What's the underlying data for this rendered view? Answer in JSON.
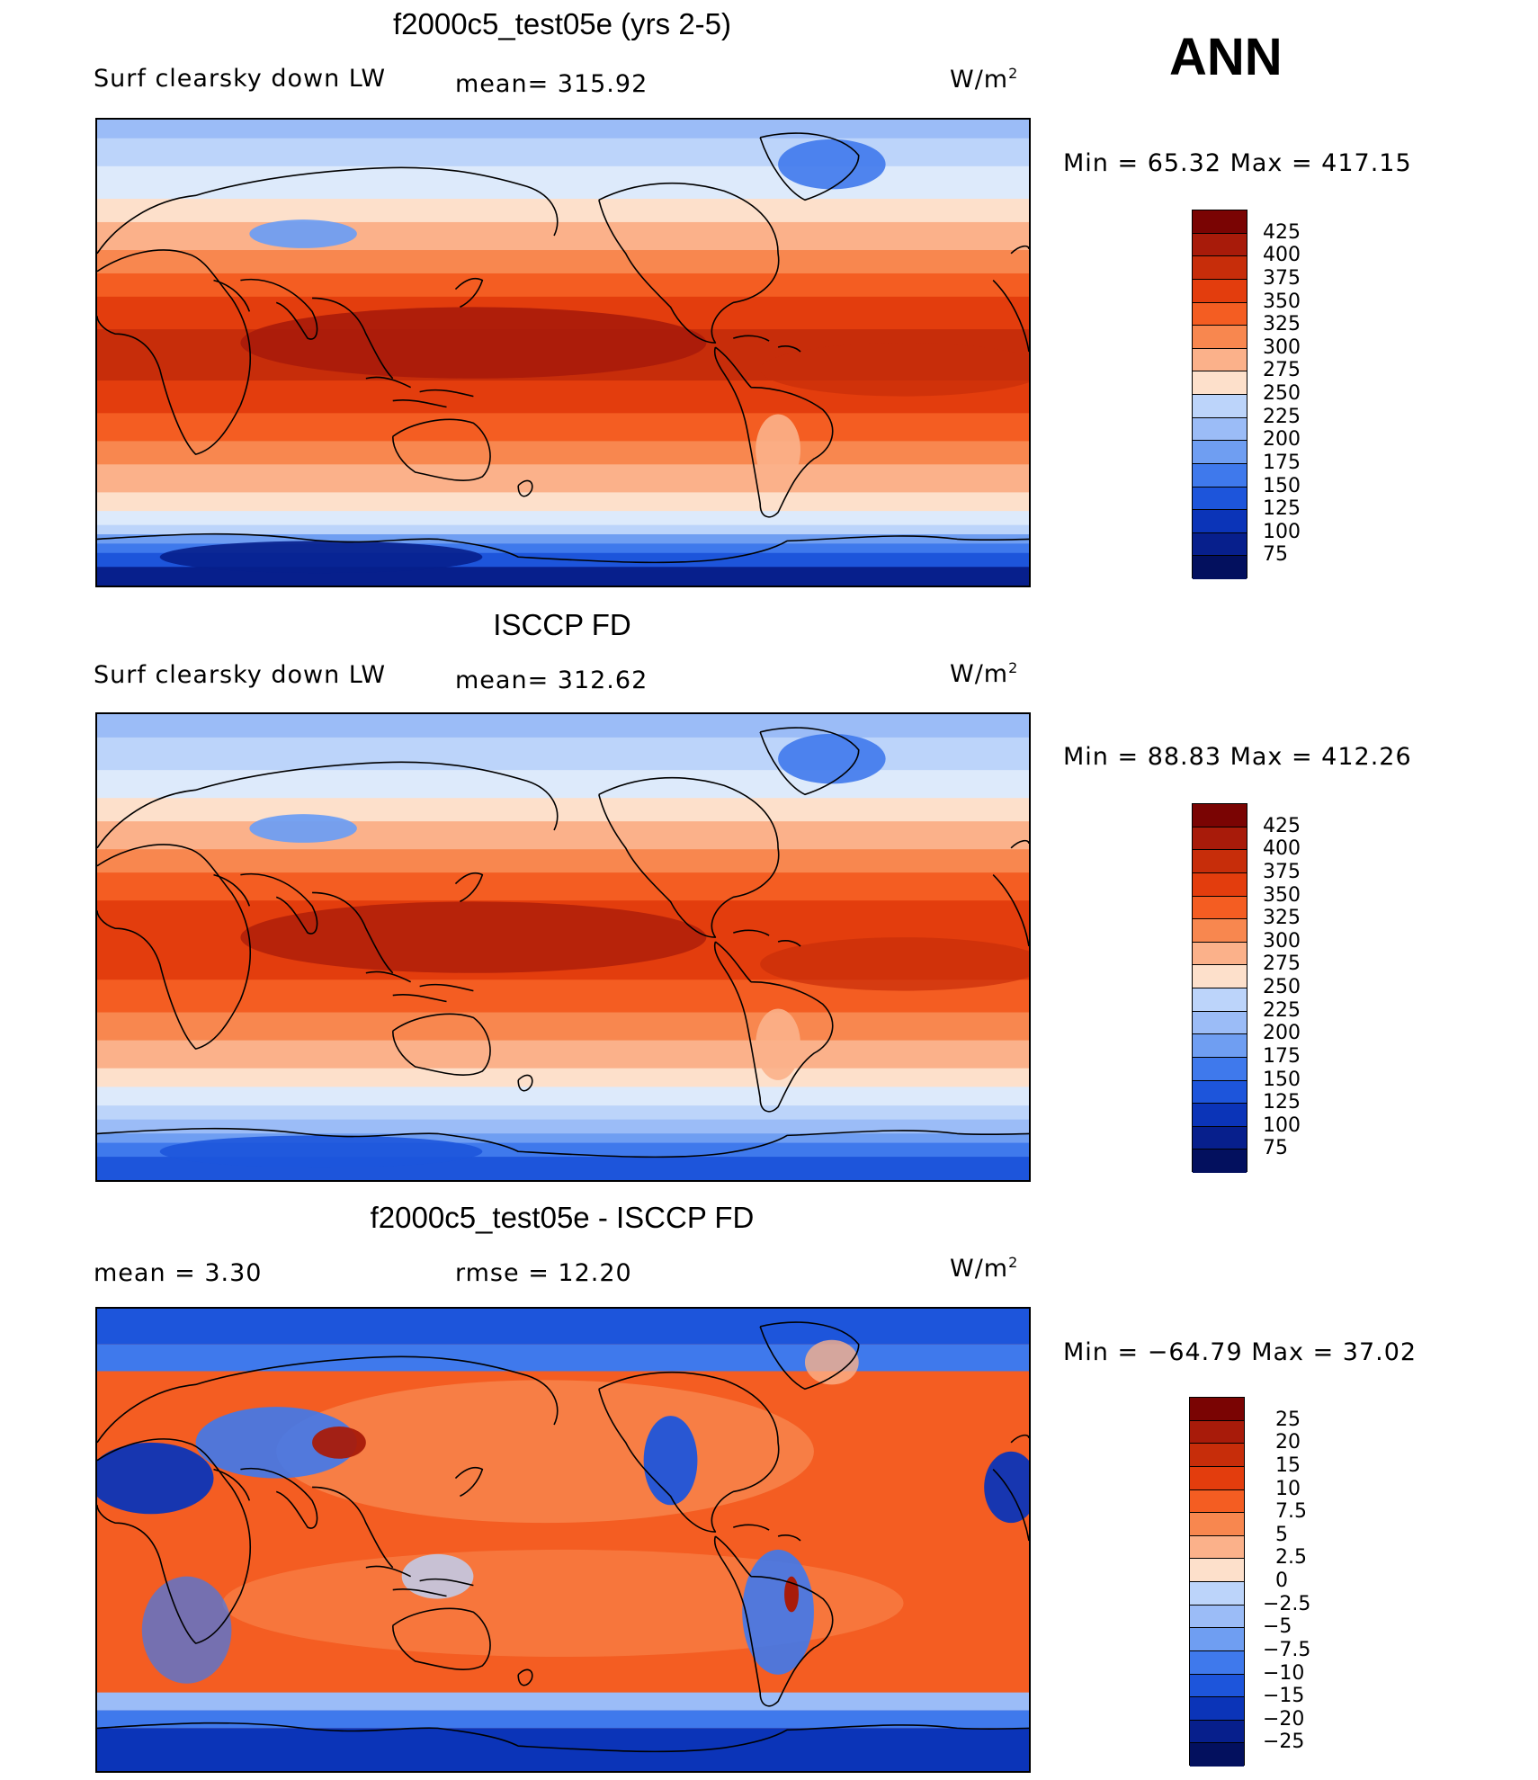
{
  "season": "ANN",
  "units_base": "W/m",
  "units_exp": "2",
  "panels": [
    {
      "title": "f2000c5_test05e (yrs 2-5)",
      "left_label": "Surf clearsky down LW",
      "mid_label": "mean= 315.92",
      "minmax": "Min =   65.32 Max = 417.15",
      "colorbar_labels": [
        "425",
        "400",
        "375",
        "350",
        "325",
        "300",
        "275",
        "250",
        "225",
        "200",
        "175",
        "150",
        "125",
        "100",
        "75"
      ],
      "kind": "model"
    },
    {
      "title": "ISCCP FD",
      "left_label": "Surf clearsky down LW",
      "mid_label": "mean= 312.62",
      "minmax": "Min =   88.83 Max = 412.26",
      "colorbar_labels": [
        "425",
        "400",
        "375",
        "350",
        "325",
        "300",
        "275",
        "250",
        "225",
        "200",
        "175",
        "150",
        "125",
        "100",
        "75"
      ],
      "kind": "obs"
    },
    {
      "title": "f2000c5_test05e - ISCCP FD",
      "left_label": "mean =     3.30",
      "mid_label": "rmse =    12.20",
      "minmax": "Min = −64.79 Max =   37.02",
      "colorbar_labels": [
        "25",
        "20",
        "15",
        "10",
        "7.5",
        "5",
        "2.5",
        "0",
        "−2.5",
        "−5",
        "−7.5",
        "−10",
        "−15",
        "−20",
        "−25"
      ],
      "kind": "diff"
    }
  ],
  "colors": {
    "palette": [
      "#7a0403",
      "#a81b0a",
      "#c72d0a",
      "#e33d0d",
      "#f45d22",
      "#f8874f",
      "#fbb18a",
      "#fde0cb",
      "#ddeafb",
      "#bcd4fa",
      "#9bbcf7",
      "#6f9ef2",
      "#3f79ec",
      "#1d55db",
      "#0b34b8",
      "#071f8c",
      "#03105e"
    ]
  }
}
